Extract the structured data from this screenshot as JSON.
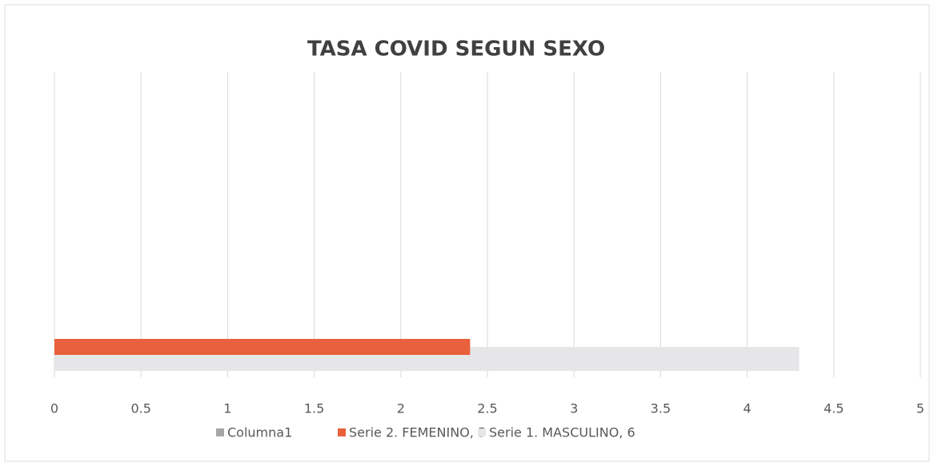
{
  "chart_data": {
    "type": "hbar",
    "title": "TASA  COVID SEGUN SEXO",
    "categories": [
      null
    ],
    "series": [
      {
        "name": "Columna1",
        "color": "#a6a6a6",
        "values": [
          null
        ]
      },
      {
        "name": "Serie 2. FEMENINO, 5",
        "color": "#e8603c",
        "values": [
          2.4
        ]
      },
      {
        "name": "Serie 1. MASCULINO,  6",
        "color": "#e6e6e8",
        "values": [
          4.3
        ]
      }
    ],
    "xlim": [
      0,
      5
    ],
    "xticks": [
      0,
      0.5,
      1,
      1.5,
      2,
      2.5,
      3,
      3.5,
      4,
      4.5,
      5
    ],
    "grid": true,
    "legend": "bottom"
  }
}
